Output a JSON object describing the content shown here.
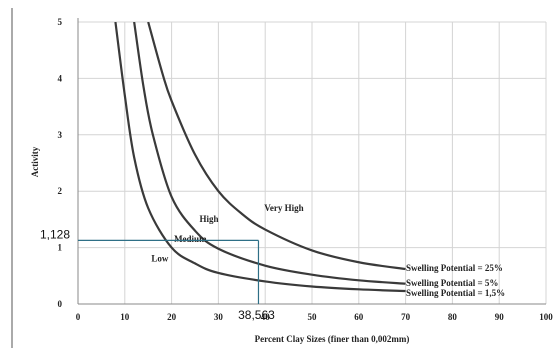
{
  "chart_data": {
    "type": "line",
    "title": "",
    "xlabel": "Percent Clay Sizes (finer than 0,002mm)",
    "ylabel": "Activity",
    "xlim": [
      0,
      100
    ],
    "ylim": [
      0,
      5
    ],
    "x_ticks": [
      "0",
      "10",
      "20",
      "30",
      "40",
      "50",
      "60",
      "70",
      "80",
      "90",
      "100"
    ],
    "y_ticks": [
      "0",
      "1",
      "2",
      "3",
      "4",
      "5"
    ],
    "grid": true,
    "series": [
      {
        "name": "Swelling Potential = 1,5%",
        "x": [
          8,
          10,
          12,
          15,
          20,
          25,
          30,
          40,
          50,
          60,
          70
        ],
        "y": [
          5.0,
          3.7,
          2.6,
          1.7,
          1.0,
          0.72,
          0.55,
          0.4,
          0.31,
          0.26,
          0.23
        ]
      },
      {
        "name": "Swelling Potential = 5%",
        "x": [
          12,
          14,
          16,
          20,
          25,
          30,
          40,
          50,
          60,
          70
        ],
        "y": [
          5.0,
          3.85,
          3.0,
          1.9,
          1.3,
          0.98,
          0.68,
          0.52,
          0.42,
          0.36
        ]
      },
      {
        "name": "Swelling Potential = 25%",
        "x": [
          15,
          18,
          20,
          25,
          30,
          35,
          40,
          50,
          60,
          70
        ],
        "y": [
          5.0,
          4.1,
          3.6,
          2.65,
          2.0,
          1.6,
          1.32,
          0.95,
          0.74,
          0.62
        ]
      }
    ],
    "zone_labels": [
      "Low",
      "Medium",
      "High",
      "Very High"
    ],
    "annotation": {
      "x": 38.563,
      "y": 1.128,
      "x_label": "38,563",
      "y_label": "1,128"
    }
  }
}
